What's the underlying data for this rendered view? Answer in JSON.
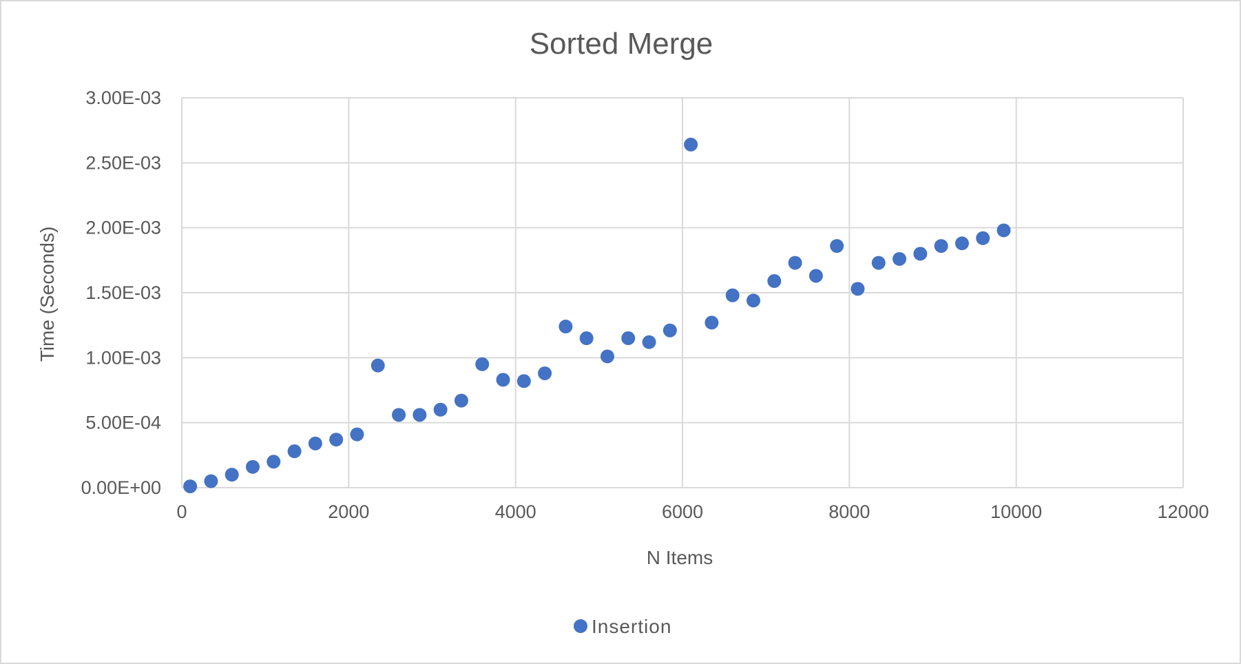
{
  "chart_data": {
    "type": "scatter",
    "title": "Sorted Merge",
    "xlabel": "N Items",
    "ylabel": "Time (Seconds)",
    "xlim": [
      0,
      12000
    ],
    "ylim": [
      0,
      0.003
    ],
    "x_ticks": [
      0,
      2000,
      4000,
      6000,
      8000,
      10000,
      12000
    ],
    "x_tick_labels": [
      "0",
      "2000",
      "4000",
      "6000",
      "8000",
      "10000",
      "12000"
    ],
    "y_ticks": [
      0,
      0.0005,
      0.001,
      0.0015,
      0.002,
      0.0025,
      0.003
    ],
    "y_tick_labels": [
      "0.00E+00",
      "5.00E-04",
      "1.00E-03",
      "1.50E-03",
      "2.00E-03",
      "2.50E-03",
      "3.00E-03"
    ],
    "grid": true,
    "legend_position": "bottom",
    "series": [
      {
        "name": "Insertion",
        "color": "#4472c4",
        "points": [
          [
            100,
            1e-05
          ],
          [
            350,
            5e-05
          ],
          [
            600,
            0.0001
          ],
          [
            850,
            0.00016
          ],
          [
            1100,
            0.0002
          ],
          [
            1350,
            0.00028
          ],
          [
            1600,
            0.00034
          ],
          [
            1850,
            0.00037
          ],
          [
            2100,
            0.00041
          ],
          [
            2350,
            0.00094
          ],
          [
            2600,
            0.00056
          ],
          [
            2850,
            0.00056
          ],
          [
            3100,
            0.0006
          ],
          [
            3350,
            0.00067
          ],
          [
            3600,
            0.00095
          ],
          [
            3850,
            0.00083
          ],
          [
            4100,
            0.00082
          ],
          [
            4350,
            0.00088
          ],
          [
            4600,
            0.00124
          ],
          [
            4850,
            0.00115
          ],
          [
            5100,
            0.00101
          ],
          [
            5350,
            0.00115
          ],
          [
            5600,
            0.00112
          ],
          [
            5850,
            0.00121
          ],
          [
            6100,
            0.00264
          ],
          [
            6350,
            0.00127
          ],
          [
            6600,
            0.00148
          ],
          [
            6850,
            0.00144
          ],
          [
            7100,
            0.00159
          ],
          [
            7350,
            0.00173
          ],
          [
            7600,
            0.00163
          ],
          [
            7850,
            0.00186
          ],
          [
            8100,
            0.00153
          ],
          [
            8350,
            0.00173
          ],
          [
            8600,
            0.00176
          ],
          [
            8850,
            0.0018
          ],
          [
            9100,
            0.00186
          ],
          [
            9350,
            0.00188
          ],
          [
            9600,
            0.00192
          ],
          [
            9850,
            0.00198
          ]
        ]
      }
    ]
  }
}
